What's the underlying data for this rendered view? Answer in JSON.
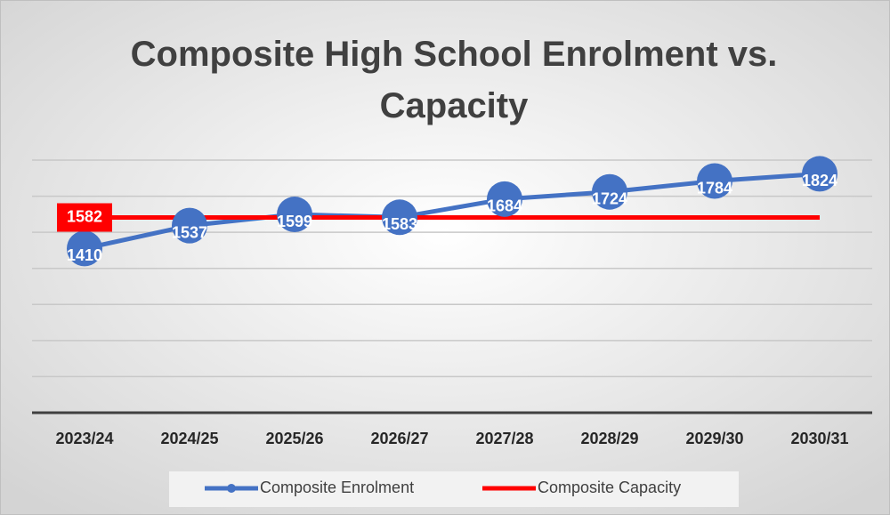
{
  "chart_data": {
    "type": "line",
    "title": "Composite High School Enrolment vs. Capacity",
    "categories": [
      "2023/24",
      "2024/25",
      "2025/26",
      "2026/27",
      "2027/28",
      "2028/29",
      "2029/30",
      "2030/31"
    ],
    "series": [
      {
        "name": "Composite Enrolment",
        "color": "#4472c4",
        "values": [
          1410,
          1537,
          1599,
          1583,
          1684,
          1724,
          1784,
          1824
        ],
        "markers": true,
        "data_labels": "all"
      },
      {
        "name": "Composite Capacity",
        "color": "#ff0000",
        "values": [
          1582,
          1582,
          1582,
          1582,
          1582,
          1582,
          1582,
          1582
        ],
        "markers": false,
        "data_labels": "first"
      }
    ],
    "ylim": [
      500,
      1900
    ],
    "yticks": [
      500,
      700,
      900,
      1100,
      1300,
      1500,
      1700,
      1900
    ],
    "grid": true,
    "show_ytick_labels": false,
    "legend": "bottom"
  }
}
